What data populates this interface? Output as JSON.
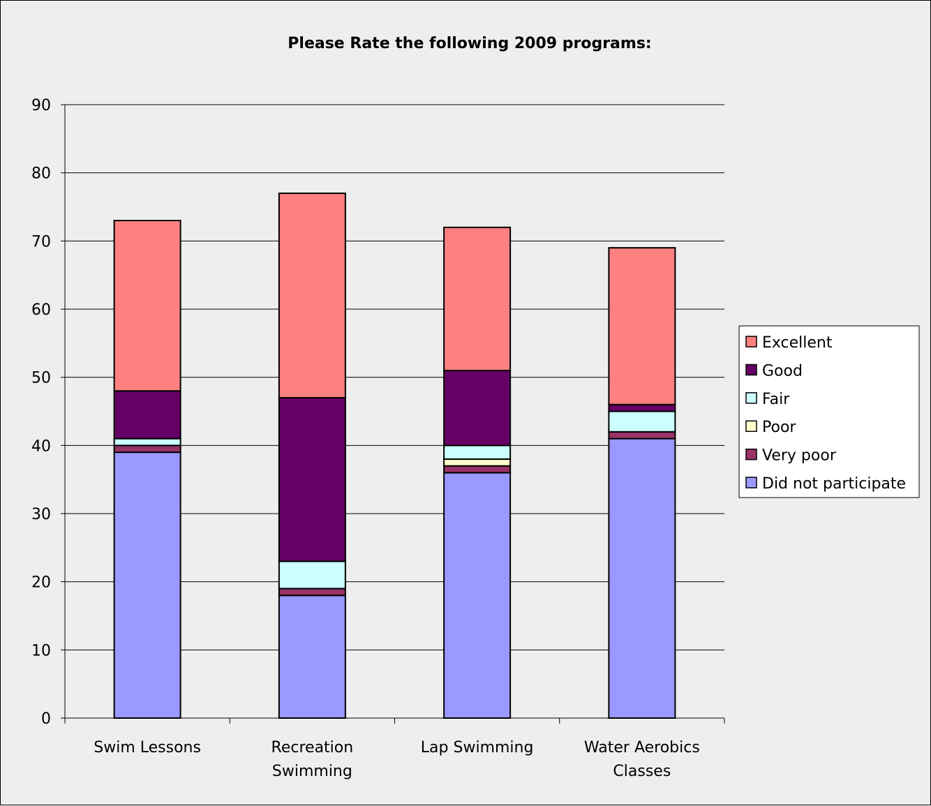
{
  "chart_data": {
    "type": "bar",
    "stacked": true,
    "title": "Please Rate the following 2009 programs:",
    "xlabel": "",
    "ylabel": "",
    "ylim": [
      0,
      90
    ],
    "yticks": [
      0,
      10,
      20,
      30,
      40,
      50,
      60,
      70,
      80,
      90
    ],
    "grid": true,
    "legend_position": "right",
    "categories": [
      [
        "Swim Lessons"
      ],
      [
        "Recreation",
        "Swimming"
      ],
      [
        "Lap Swimming"
      ],
      [
        "Water Aerobics",
        "Classes"
      ]
    ],
    "series": [
      {
        "name": "Did not participate",
        "color": "#9999ff",
        "values": [
          39,
          18,
          36,
          41
        ]
      },
      {
        "name": "Very poor",
        "color": "#993366",
        "values": [
          1,
          1,
          1,
          1
        ]
      },
      {
        "name": "Poor",
        "color": "#ffffcc",
        "values": [
          0,
          0,
          1,
          0
        ]
      },
      {
        "name": "Fair",
        "color": "#ccffff",
        "values": [
          1,
          4,
          2,
          3
        ]
      },
      {
        "name": "Good",
        "color": "#660066",
        "values": [
          7,
          24,
          11,
          1
        ]
      },
      {
        "name": "Excellent",
        "color": "#ff8080",
        "values": [
          25,
          30,
          21,
          23
        ]
      }
    ]
  }
}
